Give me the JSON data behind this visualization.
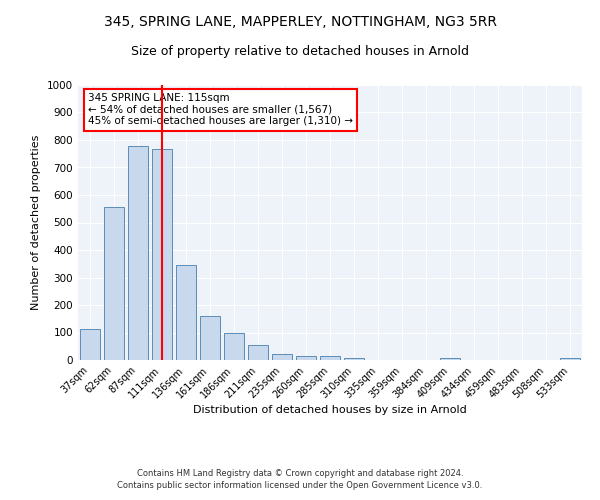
{
  "title": "345, SPRING LANE, MAPPERLEY, NOTTINGHAM, NG3 5RR",
  "subtitle": "Size of property relative to detached houses in Arnold",
  "xlabel": "Distribution of detached houses by size in Arnold",
  "ylabel": "Number of detached properties",
  "categories": [
    "37sqm",
    "62sqm",
    "87sqm",
    "111sqm",
    "136sqm",
    "161sqm",
    "186sqm",
    "211sqm",
    "235sqm",
    "260sqm",
    "285sqm",
    "310sqm",
    "335sqm",
    "359sqm",
    "384sqm",
    "409sqm",
    "434sqm",
    "459sqm",
    "483sqm",
    "508sqm",
    "533sqm"
  ],
  "values": [
    113,
    557,
    779,
    769,
    345,
    160,
    97,
    53,
    21,
    14,
    14,
    8,
    0,
    0,
    0,
    9,
    0,
    0,
    0,
    0,
    9
  ],
  "bar_color": "#c9d9ed",
  "bar_edge_color": "#5b8db8",
  "vline_index": 3,
  "vline_color": "red",
  "annotation_text": "345 SPRING LANE: 115sqm\n← 54% of detached houses are smaller (1,567)\n45% of semi-detached houses are larger (1,310) →",
  "annotation_box_color": "white",
  "annotation_box_edge_color": "red",
  "ylim": [
    0,
    1000
  ],
  "yticks": [
    0,
    100,
    200,
    300,
    400,
    500,
    600,
    700,
    800,
    900,
    1000
  ],
  "background_color": "#eef2f9",
  "footer": "Contains HM Land Registry data © Crown copyright and database right 2024.\nContains public sector information licensed under the Open Government Licence v3.0.",
  "title_fontsize": 10,
  "subtitle_fontsize": 9,
  "xlabel_fontsize": 8,
  "ylabel_fontsize": 8,
  "grid_color": "white",
  "bar_width": 0.85
}
